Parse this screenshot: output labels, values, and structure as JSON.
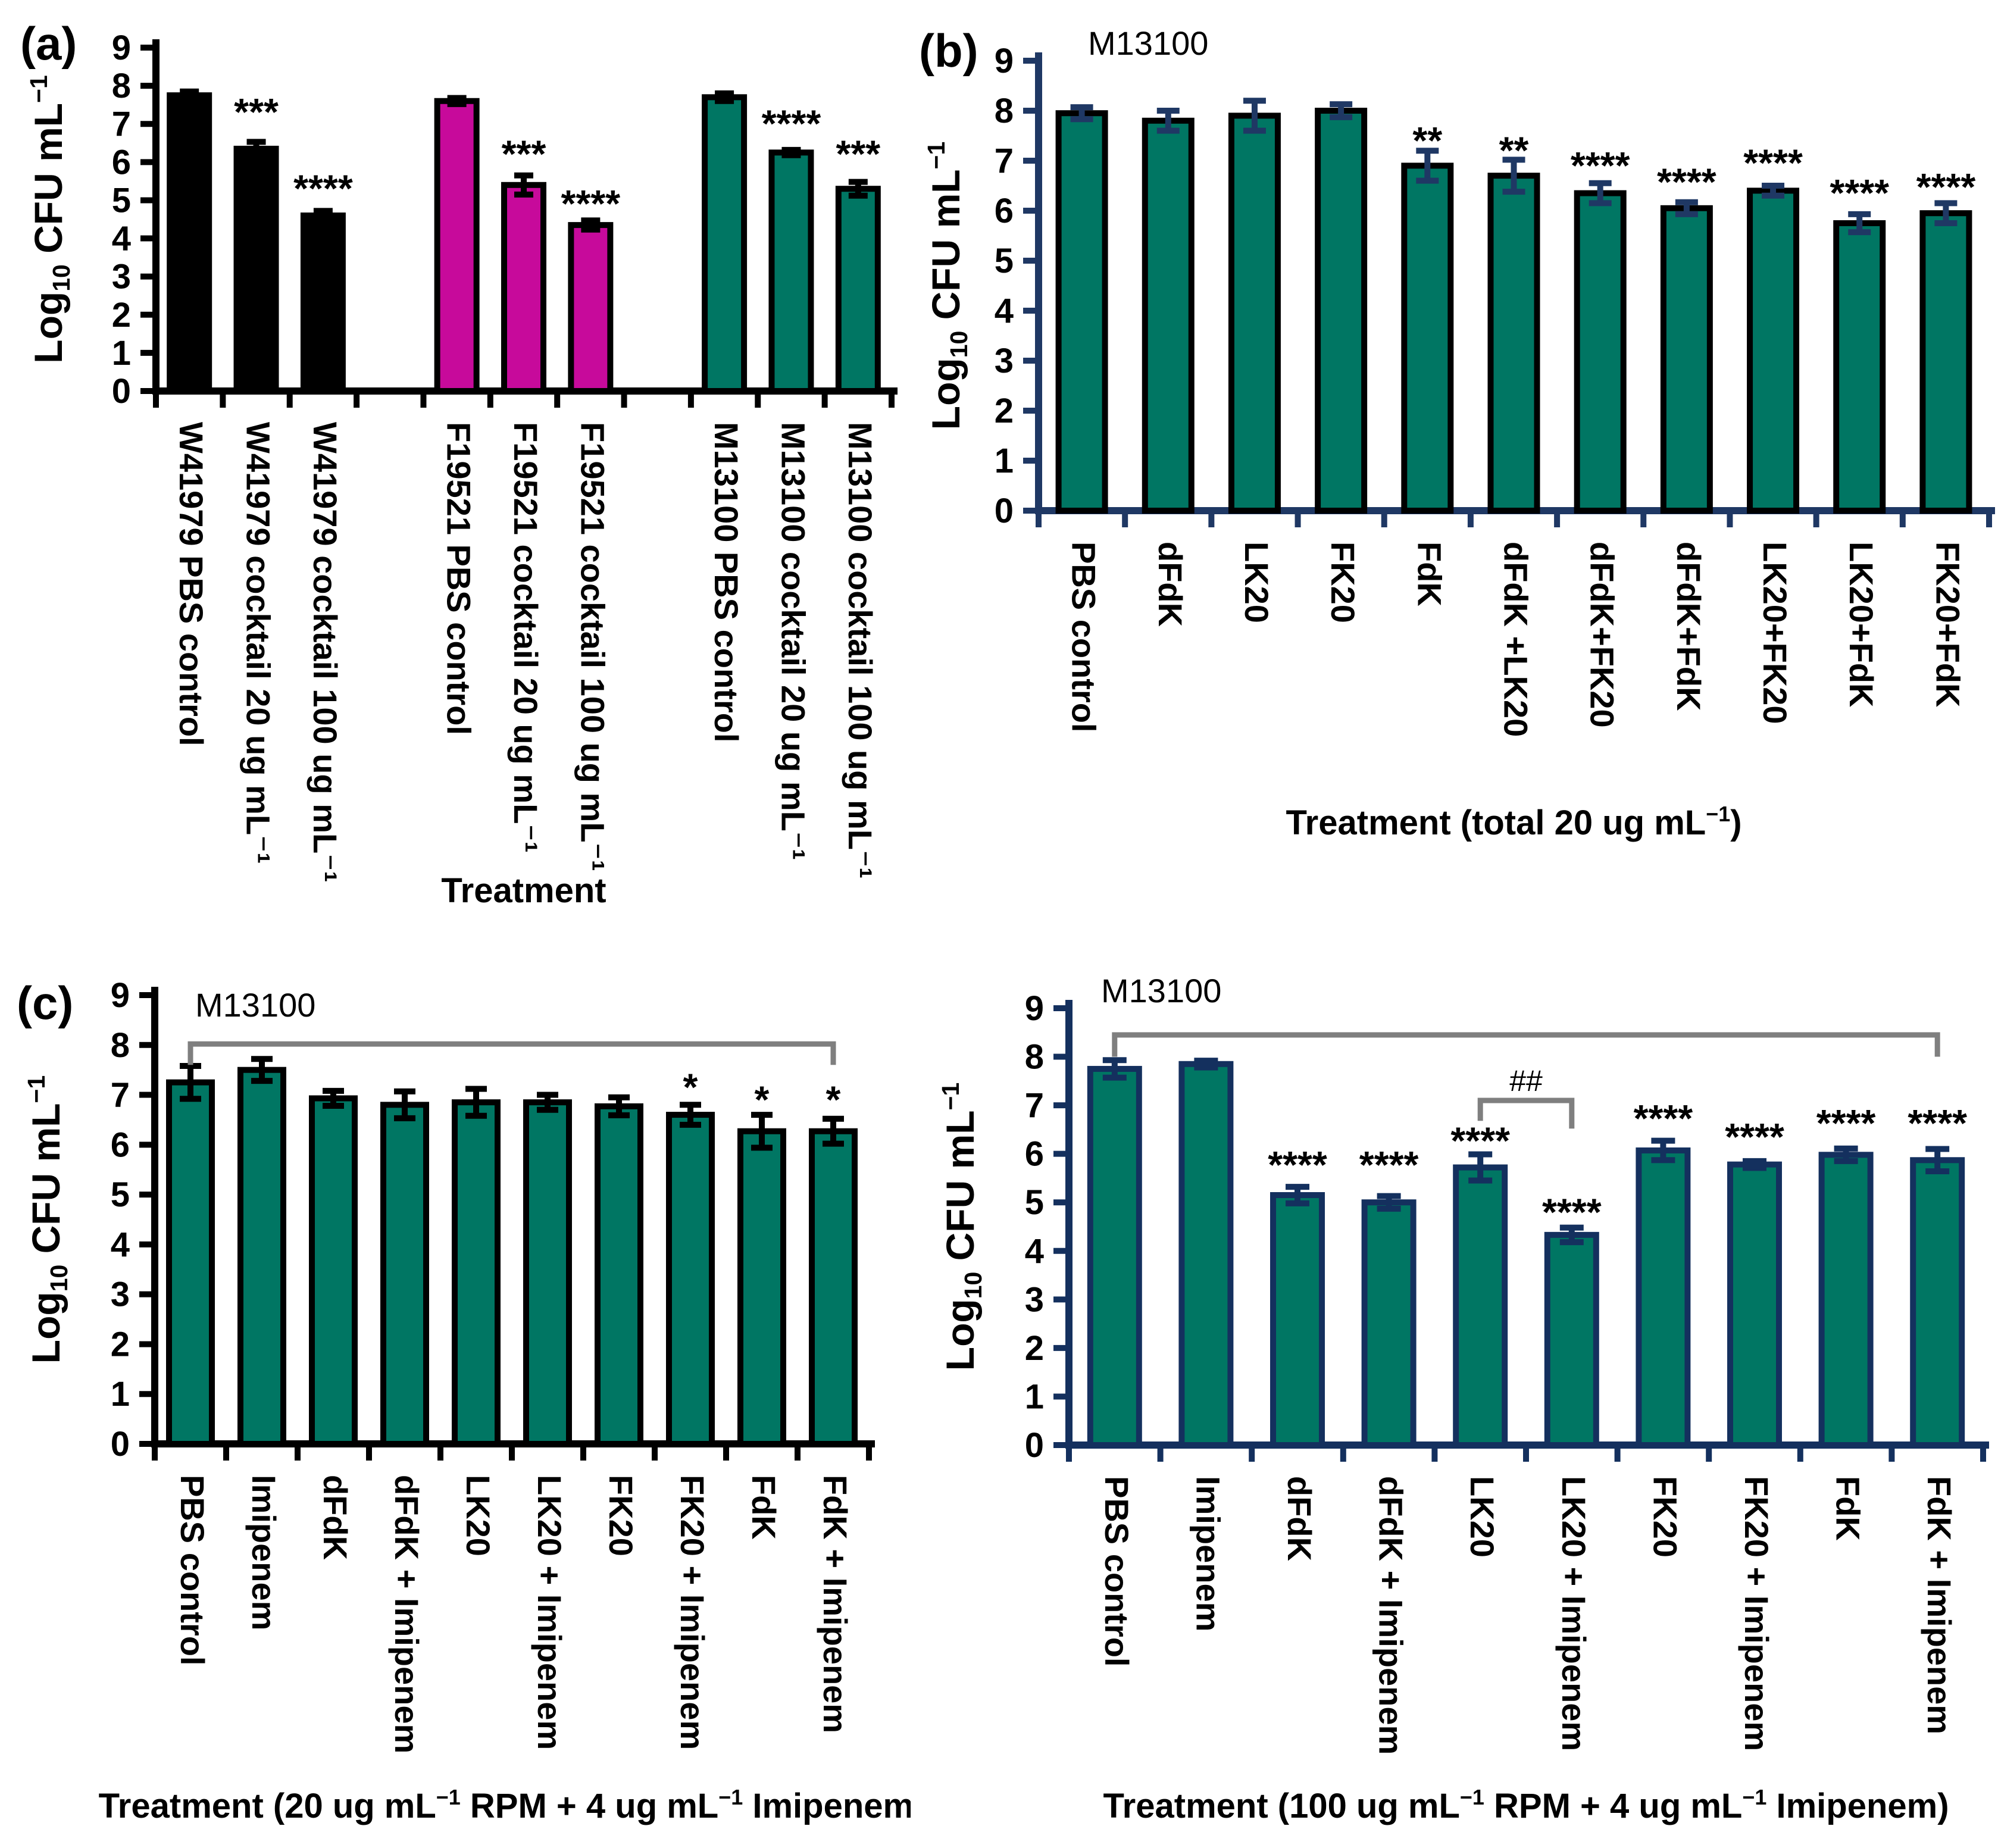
{
  "figure": {
    "background": "#ffffff",
    "text_color": "#000000",
    "gray_bracket_color": "#7F7F7F"
  },
  "chart_data": [
    {
      "panel": "a",
      "type": "bar",
      "panel_label": "(a)",
      "inner_title": "",
      "y_axis": {
        "label_rich": [
          {
            "t": "Log"
          },
          {
            "t": "10",
            "sub": true
          },
          {
            "t": " CFU mL"
          },
          {
            "t": "−1",
            "sup": true
          }
        ],
        "min": 0,
        "max": 9,
        "ticks": [
          0,
          1,
          2,
          3,
          4,
          5,
          6,
          7,
          8,
          9
        ]
      },
      "x_axis": {
        "title_rich": [
          {
            "t": "Treatment"
          }
        ]
      },
      "categories": [
        "W41979 PBS control",
        "W41979 cocktail 20 ug mL⁻¹",
        "W41979 cocktail 100 ug mL⁻¹",
        "F19521 PBS control",
        "F19521 cocktail 20 ug mL⁻¹",
        "F19521 cocktail 100 ug mL⁻¹",
        "M13100 PBS control",
        "M13100 cocktail 20 ug mL⁻¹",
        "M13100 cocktail 100 ug mL⁻¹"
      ],
      "values": [
        7.75,
        6.35,
        4.6,
        7.6,
        5.4,
        4.35,
        7.7,
        6.25,
        5.3
      ],
      "errors": [
        0.1,
        0.18,
        0.12,
        0.08,
        0.25,
        0.12,
        0.1,
        0.07,
        0.18
      ],
      "significance": [
        "",
        "***",
        "****",
        "",
        "***",
        "****",
        "",
        "****",
        "***"
      ],
      "significance_y": [
        null,
        7.5,
        5.5,
        null,
        6.4,
        5.1,
        null,
        7.2,
        6.4
      ],
      "bar_fill_colors": [
        "#000000",
        "#000000",
        "#000000",
        "#C70A9B",
        "#C70A9B",
        "#C70A9B",
        "#007663",
        "#007663",
        "#007663"
      ],
      "slot_indices": [
        0,
        1,
        2,
        4,
        5,
        6,
        8,
        9,
        10
      ],
      "n_slots": 11,
      "colors": {
        "axis": "#000000",
        "bar_border": "#000000",
        "error_bar": "#000000",
        "significance": "#000000"
      },
      "brackets": []
    },
    {
      "panel": "b",
      "type": "bar",
      "panel_label": "(b)",
      "inner_title": "M13100",
      "y_axis": {
        "label_rich": [
          {
            "t": "Log"
          },
          {
            "t": "10",
            "sub": true
          },
          {
            "t": " CFU mL"
          },
          {
            "t": "−1",
            "sup": true
          }
        ],
        "min": 0,
        "max": 9,
        "ticks": [
          0,
          1,
          2,
          3,
          4,
          5,
          6,
          7,
          8,
          9
        ]
      },
      "x_axis": {
        "title_rich": [
          {
            "t": "Treatment (total 20 ug mL"
          },
          {
            "t": "−1",
            "sup": true
          },
          {
            "t": ")"
          }
        ]
      },
      "categories": [
        "PBS control",
        "dFdK",
        "LK20",
        "FK20",
        "FdK",
        "dFdK +LK20",
        "dFdK+FK20",
        "dFdK+FdK",
        "LK20+FK20",
        "LK20+FdK",
        "FK20+FdK"
      ],
      "values": [
        7.95,
        7.8,
        7.9,
        8.0,
        6.9,
        6.7,
        6.35,
        6.05,
        6.4,
        5.75,
        5.95
      ],
      "errors": [
        0.12,
        0.2,
        0.3,
        0.13,
        0.3,
        0.32,
        0.2,
        0.12,
        0.1,
        0.18,
        0.2
      ],
      "significance": [
        "",
        "",
        "",
        "",
        "**",
        "**",
        "****",
        "****",
        "****",
        "****",
        "****"
      ],
      "significance_y": [
        null,
        null,
        null,
        null,
        7.55,
        7.35,
        7.05,
        6.72,
        7.1,
        6.5,
        6.62
      ],
      "bar_fill_colors": [
        "#007663",
        "#007663",
        "#007663",
        "#007663",
        "#007663",
        "#007663",
        "#007663",
        "#007663",
        "#007663",
        "#007663",
        "#007663"
      ],
      "slot_indices": [
        0,
        1,
        2,
        3,
        4,
        5,
        6,
        7,
        8,
        9,
        10
      ],
      "n_slots": 11,
      "colors": {
        "axis": "#1F3864",
        "bar_border": "#000000",
        "error_bar": "#1F3864",
        "significance": "#000000"
      },
      "brackets": []
    },
    {
      "panel": "c-left",
      "type": "bar",
      "panel_label": "(c)",
      "inner_title": "M13100",
      "y_axis": {
        "label_rich": [
          {
            "t": "Log"
          },
          {
            "t": "10",
            "sub": true
          },
          {
            "t": " CFU mL"
          },
          {
            "t": "−1",
            "sup": true
          }
        ],
        "min": 0,
        "max": 9,
        "ticks": [
          0,
          1,
          2,
          3,
          4,
          5,
          6,
          7,
          8,
          9
        ]
      },
      "x_axis": {
        "title_rich": [
          {
            "t": "Treatment (20 ug mL"
          },
          {
            "t": "−1",
            "sup": true
          },
          {
            "t": " RPM + 4 ug mL"
          },
          {
            "t": "−1",
            "sup": true
          },
          {
            "t": " Imipenem)"
          }
        ]
      },
      "categories": [
        "PBS control",
        "Imipenem",
        "dFdK",
        "dFdK + Imipenem",
        "LK20",
        "LK20 + Imipenem",
        "FK20",
        "FK20 + Imipenem",
        "FdK",
        "FdK + Imipenem"
      ],
      "values": [
        7.25,
        7.5,
        6.93,
        6.8,
        6.85,
        6.85,
        6.77,
        6.6,
        6.27,
        6.27
      ],
      "errors": [
        0.33,
        0.22,
        0.15,
        0.27,
        0.27,
        0.15,
        0.18,
        0.2,
        0.33,
        0.25
      ],
      "significance": [
        "",
        "",
        "",
        "",
        "",
        "",
        "",
        "*",
        "*",
        "*"
      ],
      "significance_y": [
        null,
        null,
        null,
        null,
        null,
        null,
        null,
        7.3,
        7.05,
        7.05
      ],
      "bar_fill_colors": [
        "#007663",
        "#007663",
        "#007663",
        "#007663",
        "#007663",
        "#007663",
        "#007663",
        "#007663",
        "#007663",
        "#007663"
      ],
      "slot_indices": [
        0,
        1,
        2,
        3,
        4,
        5,
        6,
        7,
        8,
        9
      ],
      "n_slots": 10,
      "colors": {
        "axis": "#000000",
        "bar_border": "#000000",
        "error_bar": "#000000",
        "significance": "#000000"
      },
      "brackets": [
        {
          "from": 0,
          "to": 9,
          "y": 8.02,
          "drop_left": 0.42,
          "drop_right": 0.42,
          "label": "",
          "color": "#7F7F7F"
        }
      ]
    },
    {
      "panel": "c-right",
      "type": "bar",
      "panel_label": "",
      "inner_title": "M13100",
      "y_axis": {
        "label_rich": [
          {
            "t": "Log"
          },
          {
            "t": "10",
            "sub": true
          },
          {
            "t": " CFU mL"
          },
          {
            "t": "−1",
            "sup": true
          }
        ],
        "min": 0,
        "max": 9,
        "ticks": [
          0,
          1,
          2,
          3,
          4,
          5,
          6,
          7,
          8,
          9
        ]
      },
      "x_axis": {
        "title_rich": [
          {
            "t": "Treatment (100 ug mL"
          },
          {
            "t": "−1",
            "sup": true
          },
          {
            "t": " RPM + 4 ug mL"
          },
          {
            "t": "−1",
            "sup": true
          },
          {
            "t": " Imipenem)"
          }
        ]
      },
      "categories": [
        "PBS control",
        "Imipenem",
        "dFdK",
        "dFdK + Imipenem",
        "LK20",
        "LK20 + Imipenem",
        "FK20",
        "FK20 + Imipenem",
        "FdK",
        "FdK + Imipenem"
      ],
      "values": [
        7.75,
        7.85,
        5.15,
        5.0,
        5.72,
        4.33,
        6.07,
        5.78,
        5.98,
        5.87
      ],
      "errors": [
        0.18,
        0.07,
        0.17,
        0.13,
        0.27,
        0.15,
        0.2,
        0.07,
        0.13,
        0.23
      ],
      "significance": [
        "",
        "",
        "****",
        "****",
        "****",
        "****",
        "****",
        "****",
        "****",
        "****"
      ],
      "significance_y": [
        null,
        null,
        5.92,
        5.92,
        6.42,
        4.95,
        6.88,
        6.5,
        6.78,
        6.78
      ],
      "bar_fill_colors": [
        "#007663",
        "#007663",
        "#007663",
        "#007663",
        "#007663",
        "#007663",
        "#007663",
        "#007663",
        "#007663",
        "#007663"
      ],
      "slot_indices": [
        0,
        1,
        2,
        3,
        4,
        5,
        6,
        7,
        8,
        9
      ],
      "n_slots": 10,
      "colors": {
        "axis": "#14305E",
        "bar_border": "#14305E",
        "error_bar": "#14305E",
        "significance": "#000000"
      },
      "brackets": [
        {
          "from": 0,
          "to": 9,
          "y": 8.45,
          "drop_left": 0.45,
          "drop_right": 0.45,
          "label": "",
          "color": "#7F7F7F"
        },
        {
          "from": 4,
          "to": 5,
          "y": 7.1,
          "drop_left": 0.42,
          "drop_right": 0.58,
          "label": "##",
          "color": "#7F7F7F"
        }
      ]
    }
  ]
}
